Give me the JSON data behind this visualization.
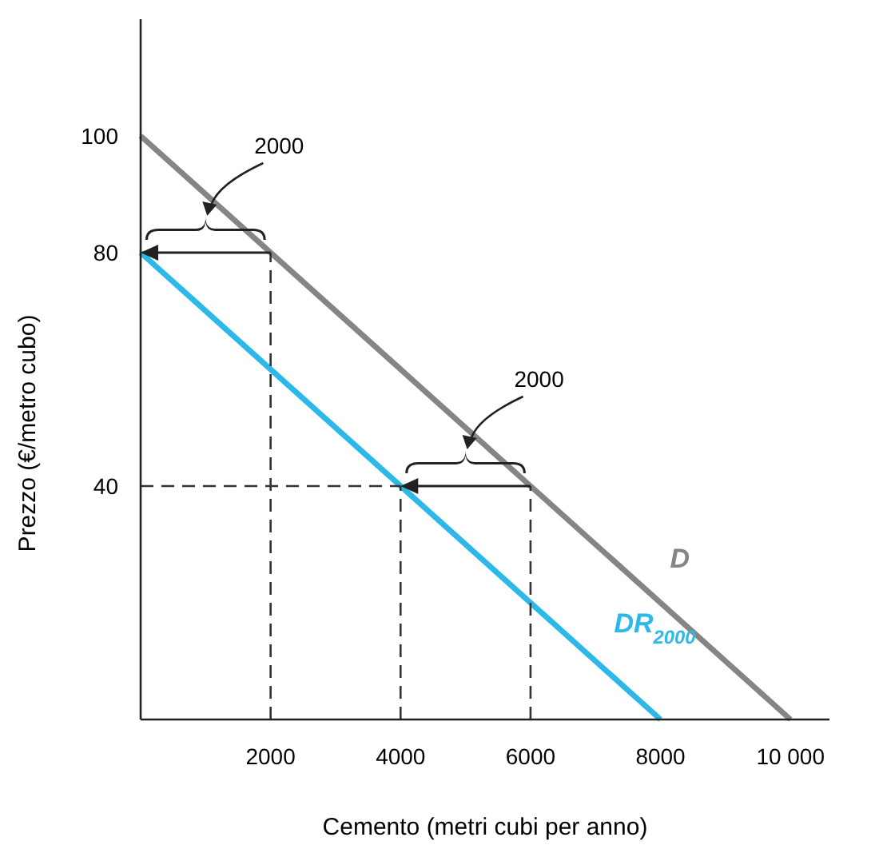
{
  "chart_data": {
    "type": "line",
    "xlabel": "Cemento (metri cubi per anno)",
    "ylabel": "Prezzo (€/metro cubo)",
    "xlim": [
      0,
      10600
    ],
    "ylim": [
      0,
      120
    ],
    "xticks": [
      2000,
      4000,
      6000,
      8000,
      {
        "value": 10000,
        "label": "10 000"
      }
    ],
    "yticks": [
      40,
      80,
      100
    ],
    "grid": false,
    "legend": false,
    "marker": "none",
    "series": [
      {
        "name": "D",
        "color": "#858585",
        "x": [
          0,
          10000
        ],
        "values": [
          100,
          0
        ],
        "line_style": "solid"
      },
      {
        "name": "DR$_{2000}$",
        "color": "#2cb8e8",
        "x": [
          0,
          8000
        ],
        "values": [
          80,
          0
        ],
        "line_style": "solid"
      },
      {
        "color": "#333333",
        "x": [
          2000,
          2000
        ],
        "values": [
          0,
          80
        ],
        "line_style": "dashed"
      },
      {
        "color": "#333333",
        "x": [
          0,
          4000
        ],
        "values": [
          40,
          40
        ],
        "line_style": "dashed"
      },
      {
        "color": "#333333",
        "x": [
          4000,
          4000
        ],
        "values": [
          0,
          40
        ],
        "line_style": "dashed"
      },
      {
        "color": "#333333",
        "x": [
          6000,
          6000
        ],
        "values": [
          0,
          40
        ],
        "line_style": "dashed"
      }
    ],
    "annotations": [
      "2000",
      "2000"
    ]
  }
}
